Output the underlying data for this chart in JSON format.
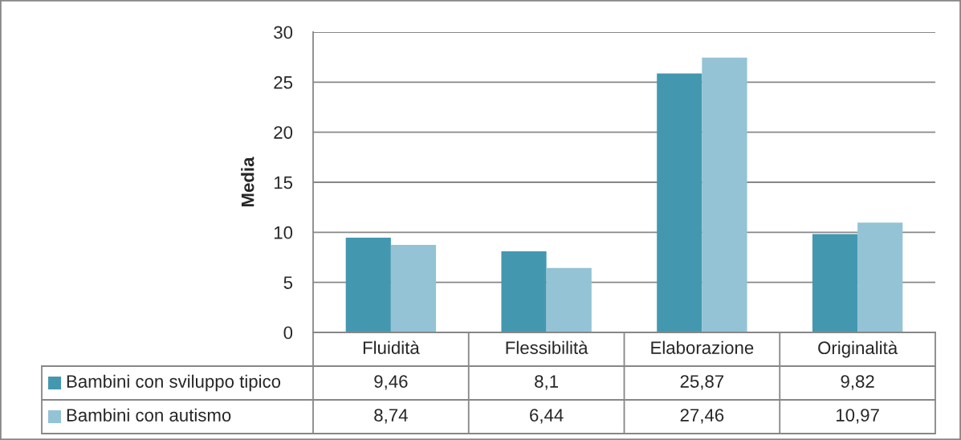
{
  "chart_data": {
    "type": "bar",
    "ylabel": "Media",
    "categories": [
      "Fluidità",
      "Flessibilità",
      "Elaborazione",
      "Originalità"
    ],
    "series": [
      {
        "name": "Bambini con sviluppo tipico",
        "color": "#4398b0",
        "values": [
          9.46,
          8.1,
          25.87,
          9.82
        ],
        "value_labels": [
          "9,46",
          "8,1",
          "25,87",
          "9,82"
        ]
      },
      {
        "name": "Bambini con autismo",
        "color": "#93c3d5",
        "values": [
          8.74,
          6.44,
          27.46,
          10.97
        ],
        "value_labels": [
          "8,74",
          "6,44",
          "27,46",
          "10,97"
        ]
      }
    ],
    "ylim": [
      0,
      30
    ],
    "yticks": [
      0,
      5,
      10,
      15,
      20,
      25,
      30
    ],
    "grid": "y",
    "legend": "bottom"
  }
}
